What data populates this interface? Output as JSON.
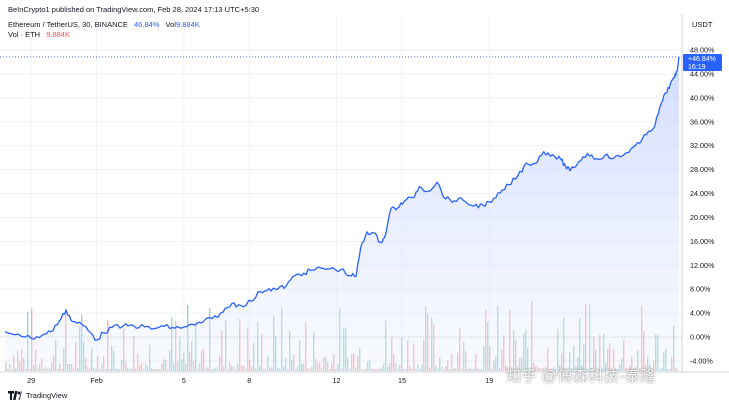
{
  "header": {
    "publisher": "BeInCrypto1 published on TradingView.com, Feb 28, 2024 17:13 UTC+5:30",
    "symbol": "Ethereum / TetherUS, 30, BINANCE",
    "change_pct": "46.84%",
    "vol_label": "Vol",
    "vol_value": "9.884K",
    "vol_series_label": "Vol · ETH",
    "vol_series_value": "9.884K"
  },
  "axis": {
    "currency": "USDT"
  },
  "price_badge": {
    "value": "+46.84%",
    "time": "16:19"
  },
  "footer": {
    "brand": "TradingView"
  },
  "watermark": "知乎 @傅森科技-泰隆",
  "colors": {
    "line": "#2962ff",
    "area_top": "#c9d6ff",
    "vol_up": "#26a69a",
    "vol_down": "#ef5350",
    "badge": "#2962ff"
  },
  "chart_data": {
    "type": "area",
    "title": "Ethereum / TetherUS, 30, BINANCE",
    "xlabel": "",
    "ylabel": "",
    "y_unit": "%",
    "ylim": [
      -4,
      50
    ],
    "y_ticks": [
      "48.00%",
      "44.00%",
      "40.00%",
      "36.00%",
      "32.00%",
      "28.00%",
      "24.00%",
      "20.00%",
      "16.00%",
      "12.00%",
      "8.00%",
      "4.00%",
      "0.00%",
      "-4.00%"
    ],
    "y_tick_values": [
      48,
      44,
      40,
      36,
      32,
      28,
      24,
      20,
      16,
      12,
      8,
      4,
      0,
      -4
    ],
    "x_ticks": [
      "29",
      "Feb",
      "5",
      "8",
      "12",
      "15",
      "19"
    ],
    "x_tick_days": [
      -2,
      1,
      5,
      8,
      12,
      15,
      19
    ],
    "x_range_days": [
      -3.2,
      27.7
    ],
    "grid": true,
    "last_value": 46.84,
    "series": [
      {
        "values": [
          [
            -3.2,
            0.9
          ],
          [
            -2.6,
            0.5
          ],
          [
            -2.0,
            -0.2
          ],
          [
            -1.5,
            0.3
          ],
          [
            -1.1,
            0.9
          ],
          [
            -0.7,
            2.7
          ],
          [
            -0.4,
            4.5
          ],
          [
            -0.1,
            2.6
          ],
          [
            0.3,
            2.2
          ],
          [
            0.7,
            0.8
          ],
          [
            1.0,
            -0.5
          ],
          [
            1.3,
            0.7
          ],
          [
            1.7,
            1.6
          ],
          [
            2.2,
            1.8
          ],
          [
            2.7,
            1.9
          ],
          [
            3.2,
            1.7
          ],
          [
            3.6,
            1.4
          ],
          [
            4.1,
            1.8
          ],
          [
            4.6,
            1.5
          ],
          [
            5.0,
            1.7
          ],
          [
            5.5,
            2.0
          ],
          [
            5.9,
            2.6
          ],
          [
            6.3,
            3.1
          ],
          [
            6.8,
            4.2
          ],
          [
            7.2,
            5.6
          ],
          [
            7.6,
            5.3
          ],
          [
            8.1,
            6.0
          ],
          [
            8.5,
            7.6
          ],
          [
            8.9,
            8.1
          ],
          [
            9.3,
            8.0
          ],
          [
            9.7,
            8.6
          ],
          [
            10.1,
            10.3
          ],
          [
            10.5,
            10.7
          ],
          [
            10.9,
            11.2
          ],
          [
            11.3,
            11.5
          ],
          [
            11.7,
            11.4
          ],
          [
            12.2,
            11.3
          ],
          [
            12.6,
            10.3
          ],
          [
            12.9,
            10.2
          ],
          [
            13.1,
            14.8
          ],
          [
            13.4,
            17.6
          ],
          [
            13.7,
            17.4
          ],
          [
            14.0,
            15.9
          ],
          [
            14.2,
            16.6
          ],
          [
            14.5,
            21.5
          ],
          [
            14.8,
            21.6
          ],
          [
            15.1,
            22.7
          ],
          [
            15.5,
            23.3
          ],
          [
            15.8,
            25.2
          ],
          [
            16.2,
            24.4
          ],
          [
            16.6,
            25.9
          ],
          [
            17.0,
            23.1
          ],
          [
            17.4,
            22.8
          ],
          [
            17.8,
            22.9
          ],
          [
            18.3,
            21.9
          ],
          [
            18.7,
            22.1
          ],
          [
            19.1,
            22.5
          ],
          [
            19.5,
            24.1
          ],
          [
            19.9,
            25.5
          ],
          [
            20.3,
            26.9
          ],
          [
            20.7,
            29.1
          ],
          [
            21.1,
            29.0
          ],
          [
            21.5,
            31.0
          ],
          [
            21.9,
            30.5
          ],
          [
            22.3,
            29.6
          ],
          [
            22.5,
            28.5
          ],
          [
            22.7,
            27.8
          ],
          [
            23.1,
            29.3
          ],
          [
            23.5,
            30.7
          ],
          [
            23.9,
            29.8
          ],
          [
            24.3,
            30.4
          ],
          [
            24.7,
            29.9
          ],
          [
            25.1,
            30.3
          ],
          [
            25.5,
            31.5
          ],
          [
            25.9,
            32.4
          ],
          [
            26.3,
            34.4
          ],
          [
            26.6,
            35.4
          ],
          [
            26.9,
            39.2
          ],
          [
            27.1,
            40.8
          ],
          [
            27.3,
            42.3
          ],
          [
            27.5,
            43.4
          ],
          [
            27.6,
            44.4
          ],
          [
            27.7,
            46.84
          ]
        ]
      }
    ]
  }
}
